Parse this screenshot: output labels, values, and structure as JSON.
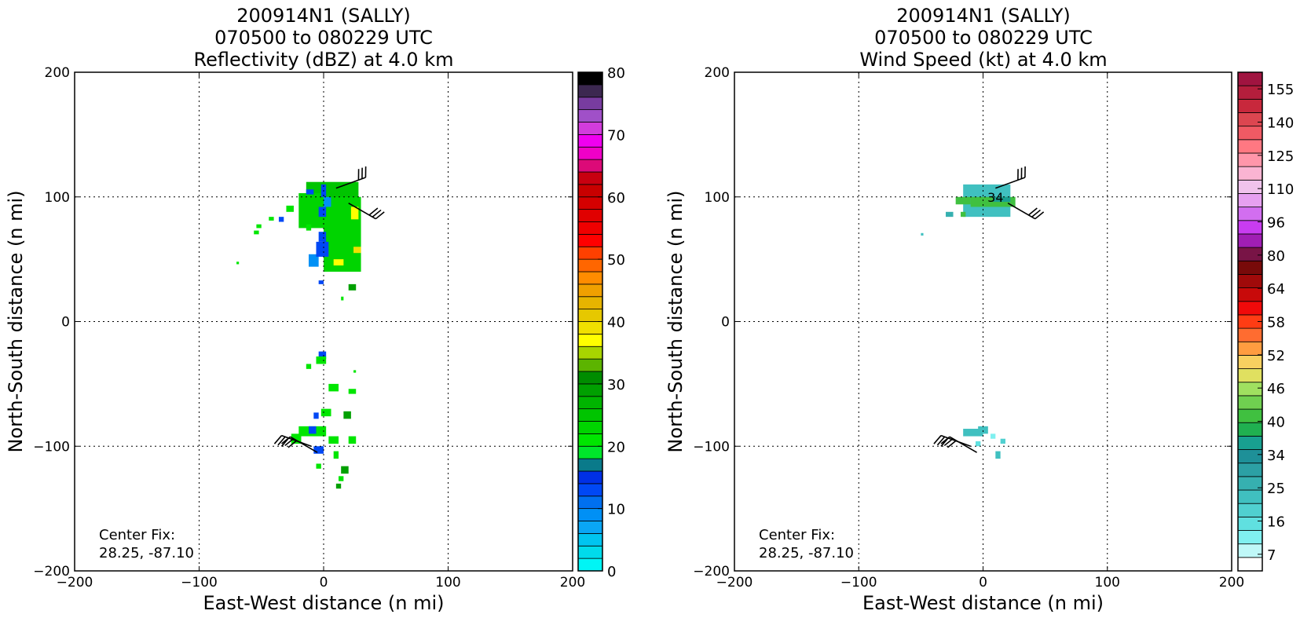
{
  "chart_data": [
    {
      "type": "heatmap",
      "title_lines": [
        "200914N1 (SALLY)",
        "070500 to 080229 UTC",
        "Reflectivity (dBZ) at 4.0 km"
      ],
      "xlabel": "East-West distance (n mi)",
      "ylabel": "North-South distance (n mi)",
      "xlim": [
        -200,
        200
      ],
      "ylim": [
        -200,
        200
      ],
      "x_ticks": [
        -200,
        -100,
        0,
        100,
        200
      ],
      "y_ticks": [
        -200,
        -100,
        0,
        100,
        200
      ],
      "x_tick_labels": [
        "−200",
        "−100",
        "0",
        "100",
        "200"
      ],
      "y_tick_labels": [
        "−200",
        "−100",
        "0",
        "100",
        "200"
      ],
      "grid": true,
      "annotation_lines": [
        "Center Fix:",
        "28.25, -87.10"
      ],
      "colorbar": {
        "min": 0,
        "max": 80,
        "tick_values": [
          0,
          10,
          20,
          30,
          40,
          50,
          60,
          70,
          80
        ],
        "tick_labels": [
          "0",
          "10",
          "20",
          "30",
          "40",
          "50",
          "60",
          "70",
          "80"
        ],
        "colors": [
          "#00f5f5",
          "#00dbeb",
          "#00c4f0",
          "#0aa6f5",
          "#0090f5",
          "#0070f0",
          "#0048f5",
          "#0030e6",
          "#0a7a8a",
          "#00e62b",
          "#00e600",
          "#00d400",
          "#00c400",
          "#00b400",
          "#00a000",
          "#008c00",
          "#5cb400",
          "#a8d400",
          "#ffff00",
          "#f0e000",
          "#e6c800",
          "#e6b400",
          "#f0a000",
          "#ff8c00",
          "#ff6600",
          "#ff4000",
          "#ff0000",
          "#f00000",
          "#e00000",
          "#d40000",
          "#c80000",
          "#c80010",
          "#dc0a78",
          "#f000c8",
          "#f000f0",
          "#d23cdc",
          "#a050c8",
          "#783ca0",
          "#3c2850",
          "#000000"
        ]
      },
      "series": [
        {
          "x_range": [
            -14,
            28
          ],
          "y_range": [
            82,
            112
          ],
          "value": 25
        },
        {
          "x_range": [
            0,
            30
          ],
          "y_range": [
            40,
            100
          ],
          "value": 23
        },
        {
          "x_range": [
            -20,
            0
          ],
          "y_range": [
            75,
            103
          ],
          "value": 23
        },
        {
          "x_range": [
            22,
            28
          ],
          "y_range": [
            82,
            92
          ],
          "value": 36
        },
        {
          "x_range": [
            24,
            30
          ],
          "y_range": [
            55,
            60
          ],
          "value": 38
        },
        {
          "x_range": [
            8,
            16
          ],
          "y_range": [
            45,
            50
          ],
          "value": 37
        },
        {
          "x_range": [
            -12,
            -4
          ],
          "y_range": [
            44,
            54
          ],
          "value": 8
        },
        {
          "x_range": [
            -6,
            4
          ],
          "y_range": [
            52,
            64
          ],
          "value": 12
        },
        {
          "x_range": [
            -4,
            2
          ],
          "y_range": [
            64,
            72
          ],
          "value": 12
        },
        {
          "x_range": [
            -4,
            2
          ],
          "y_range": [
            84,
            92
          ],
          "value": 12
        },
        {
          "x_range": [
            -2,
            2
          ],
          "y_range": [
            100,
            110
          ],
          "value": 12
        },
        {
          "x_range": [
            -14,
            -8
          ],
          "y_range": [
            102,
            106
          ],
          "value": 12
        },
        {
          "x_range": [
            0,
            6
          ],
          "y_range": [
            92,
            100
          ],
          "value": 8
        },
        {
          "x_range": [
            -4,
            0
          ],
          "y_range": [
            30,
            33
          ],
          "value": 12
        },
        {
          "x_range": [
            -30,
            -24
          ],
          "y_range": [
            88,
            93
          ],
          "value": 21
        },
        {
          "x_range": [
            -36,
            -32
          ],
          "y_range": [
            80,
            84
          ],
          "value": 12
        },
        {
          "x_range": [
            -44,
            -40
          ],
          "y_range": [
            81,
            84
          ],
          "value": 21
        },
        {
          "x_range": [
            -54,
            -50
          ],
          "y_range": [
            75,
            78
          ],
          "value": 21
        },
        {
          "x_range": [
            -56,
            -52
          ],
          "y_range": [
            70,
            73
          ],
          "value": 21
        },
        {
          "x_range": [
            -70,
            -68
          ],
          "y_range": [
            46,
            48
          ],
          "value": 21
        },
        {
          "x_range": [
            -14,
            -10
          ],
          "y_range": [
            73,
            78
          ],
          "value": 21
        },
        {
          "x_range": [
            20,
            26
          ],
          "y_range": [
            25,
            30
          ],
          "value": 28
        },
        {
          "x_range": [
            14,
            16
          ],
          "y_range": [
            17,
            20
          ],
          "value": 21
        },
        {
          "x_range": [
            -4,
            2
          ],
          "y_range": [
            -30,
            -24
          ],
          "value": 12
        },
        {
          "x_range": [
            -6,
            2
          ],
          "y_range": [
            -34,
            -28
          ],
          "value": 21
        },
        {
          "x_range": [
            -14,
            -10
          ],
          "y_range": [
            -38,
            -34
          ],
          "value": 21
        },
        {
          "x_range": [
            4,
            12
          ],
          "y_range": [
            -56,
            -50
          ],
          "value": 21
        },
        {
          "x_range": [
            20,
            26
          ],
          "y_range": [
            -58,
            -54
          ],
          "value": 21
        },
        {
          "x_range": [
            24,
            26
          ],
          "y_range": [
            -41,
            -39
          ],
          "value": 21
        },
        {
          "x_range": [
            -2,
            6
          ],
          "y_range": [
            -76,
            -70
          ],
          "value": 21
        },
        {
          "x_range": [
            -8,
            -4
          ],
          "y_range": [
            -78,
            -73
          ],
          "value": 12
        },
        {
          "x_range": [
            16,
            22
          ],
          "y_range": [
            -78,
            -72
          ],
          "value": 28
        },
        {
          "x_range": [
            -20,
            2
          ],
          "y_range": [
            -92,
            -84
          ],
          "value": 21
        },
        {
          "x_range": [
            -12,
            -6
          ],
          "y_range": [
            -90,
            -84
          ],
          "value": 12
        },
        {
          "x_range": [
            -26,
            -18
          ],
          "y_range": [
            -98,
            -90
          ],
          "value": 21
        },
        {
          "x_range": [
            4,
            12
          ],
          "y_range": [
            -98,
            -92
          ],
          "value": 21
        },
        {
          "x_range": [
            20,
            26
          ],
          "y_range": [
            -98,
            -92
          ],
          "value": 21
        },
        {
          "x_range": [
            -8,
            0
          ],
          "y_range": [
            -106,
            -100
          ],
          "value": 12
        },
        {
          "x_range": [
            8,
            12
          ],
          "y_range": [
            -110,
            -104
          ],
          "value": 21
        },
        {
          "x_range": [
            -6,
            -2
          ],
          "y_range": [
            -118,
            -114
          ],
          "value": 21
        },
        {
          "x_range": [
            14,
            20
          ],
          "y_range": [
            -122,
            -116
          ],
          "value": 28
        },
        {
          "x_range": [
            12,
            16
          ],
          "y_range": [
            -128,
            -124
          ],
          "value": 21
        },
        {
          "x_range": [
            10,
            14
          ],
          "y_range": [
            -134,
            -130
          ],
          "value": 28
        }
      ],
      "wind_barbs": [
        {
          "x": 10,
          "y": 107,
          "u_angle": 20
        },
        {
          "x": 20,
          "y": 95,
          "u_angle": -30
        },
        {
          "x": -10,
          "y": -100,
          "u_angle": 160
        },
        {
          "x": -5,
          "y": -105,
          "u_angle": 150
        }
      ]
    },
    {
      "type": "heatmap",
      "title_lines": [
        "200914N1 (SALLY)",
        "070500 to 080229 UTC",
        "Wind Speed (kt) at 4.0 km"
      ],
      "xlabel": "East-West distance (n mi)",
      "ylabel": "North-South distance (n mi)",
      "xlim": [
        -200,
        200
      ],
      "ylim": [
        -200,
        200
      ],
      "x_ticks": [
        -200,
        -100,
        0,
        100,
        200
      ],
      "y_ticks": [
        -200,
        -100,
        0,
        100,
        200
      ],
      "x_tick_labels": [
        "−200",
        "−100",
        "0",
        "100",
        "200"
      ],
      "y_tick_labels": [
        "−200",
        "−100",
        "0",
        "100",
        "200"
      ],
      "grid": true,
      "annotation_lines": [
        "Center Fix:",
        "28.25, -87.10"
      ],
      "contour_label": "34",
      "colorbar": {
        "levels": [
          7,
          10,
          13,
          16,
          19,
          22,
          25,
          28,
          31,
          34,
          37,
          40,
          43,
          46,
          49,
          52,
          55,
          58,
          61,
          64,
          72,
          80,
          88,
          96,
          103,
          110,
          118,
          125,
          133,
          140,
          148,
          155,
          160
        ],
        "tick_labels": [
          "7",
          "16",
          "25",
          "34",
          "40",
          "46",
          "52",
          "58",
          "64",
          "80",
          "96",
          "110",
          "125",
          "140",
          "155"
        ],
        "colors": [
          "#ffffff",
          "#bff8f8",
          "#80f0f0",
          "#60e0e0",
          "#50d0d0",
          "#40c0c0",
          "#36b0b0",
          "#2ca0a4",
          "#1e9098",
          "#18a090",
          "#20b050",
          "#40c040",
          "#70d050",
          "#a0e060",
          "#e0e060",
          "#f8d060",
          "#ff9c40",
          "#ff6c30",
          "#ff3c14",
          "#f00a0a",
          "#c80a0a",
          "#a00a0a",
          "#780a0a",
          "#781446",
          "#a01eb4",
          "#c83cf0",
          "#d26ef0",
          "#e6a0f0",
          "#f0c3ec",
          "#fab4d2",
          "#ff96aa",
          "#ff7882",
          "#f05a64",
          "#dc4650",
          "#c8283c",
          "#b41e3c",
          "#a01440"
        ]
      },
      "series": [
        {
          "x_range": [
            -16,
            22
          ],
          "y_range": [
            84,
            110
          ],
          "value": 22
        },
        {
          "x_range": [
            -10,
            26
          ],
          "y_range": [
            92,
            100
          ],
          "value": 40
        },
        {
          "x_range": [
            8,
            22
          ],
          "y_range": [
            96,
            100
          ],
          "value": 34
        },
        {
          "x_range": [
            -22,
            -10
          ],
          "y_range": [
            94,
            100
          ],
          "value": 40
        },
        {
          "x_range": [
            -30,
            -24
          ],
          "y_range": [
            84,
            88
          ],
          "value": 25
        },
        {
          "x_range": [
            -18,
            -14
          ],
          "y_range": [
            84,
            88
          ],
          "value": 40
        },
        {
          "x_range": [
            -50,
            -48
          ],
          "y_range": [
            69,
            71
          ],
          "value": 22
        },
        {
          "x_range": [
            -4,
            4
          ],
          "y_range": [
            -90,
            -84
          ],
          "value": 22
        },
        {
          "x_range": [
            -16,
            0
          ],
          "y_range": [
            -92,
            -86
          ],
          "value": 22
        },
        {
          "x_range": [
            6,
            10
          ],
          "y_range": [
            -94,
            -90
          ],
          "value": 13
        },
        {
          "x_range": [
            14,
            18
          ],
          "y_range": [
            -98,
            -94
          ],
          "value": 19
        },
        {
          "x_range": [
            10,
            14
          ],
          "y_range": [
            -110,
            -104
          ],
          "value": 22
        },
        {
          "x_range": [
            -6,
            -2
          ],
          "y_range": [
            -100,
            -96
          ],
          "value": 16
        }
      ],
      "wind_barbs": [
        {
          "x": 10,
          "y": 107,
          "u_angle": 20
        },
        {
          "x": 20,
          "y": 95,
          "u_angle": -30
        },
        {
          "x": -10,
          "y": -100,
          "u_angle": 160
        },
        {
          "x": -5,
          "y": -105,
          "u_angle": 150
        }
      ]
    }
  ]
}
